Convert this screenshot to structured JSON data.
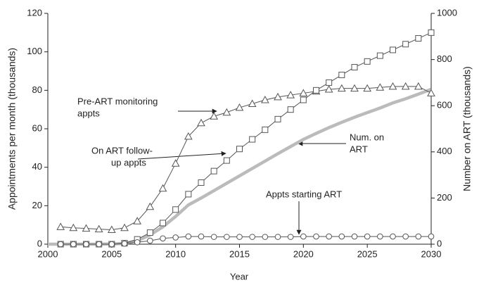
{
  "chart_data": {
    "type": "line",
    "x": [
      2000,
      2001,
      2002,
      2003,
      2004,
      2005,
      2006,
      2007,
      2008,
      2009,
      2010,
      2011,
      2012,
      2013,
      2014,
      2015,
      2016,
      2017,
      2018,
      2019,
      2020,
      2021,
      2022,
      2023,
      2024,
      2025,
      2026,
      2027,
      2028,
      2029,
      2030
    ],
    "series": [
      {
        "marker": "triangle",
        "color": "#555555",
        "values": [
          null,
          9,
          8.5,
          8.2,
          7.8,
          7.5,
          8.5,
          12,
          19.5,
          29,
          42,
          56,
          63,
          66.5,
          68.5,
          71,
          73,
          75,
          76.5,
          77.5,
          78.5,
          79.5,
          80.5,
          81,
          81,
          81,
          81.5,
          82,
          82,
          82,
          78.5
        ]
      },
      {
        "marker": "square",
        "color": "#555555",
        "values": [
          null,
          0,
          0,
          0,
          0,
          0,
          0.5,
          2.5,
          6,
          11,
          18,
          26,
          32,
          38,
          43.5,
          49.5,
          54.5,
          59.5,
          65,
          70,
          75,
          80,
          84,
          88,
          92,
          95,
          98,
          101,
          104,
          107,
          110
        ]
      },
      {
        "marker": "circle",
        "color": "#555555",
        "values": [
          null,
          0,
          0,
          0,
          0,
          0,
          0.3,
          1,
          1.8,
          3,
          3.5,
          4,
          4,
          3.8,
          3.8,
          3.8,
          3.8,
          3.8,
          3.8,
          3.8,
          4,
          4,
          4,
          4,
          4,
          4,
          4,
          4,
          4,
          4,
          4
        ]
      },
      {
        "marker": "none",
        "axis": "y2",
        "color": "#bbbbbb",
        "values": [
          0,
          0,
          0,
          0,
          0,
          1,
          3,
          15,
          40,
          75,
          120,
          170,
          200,
          232,
          264,
          296,
          328,
          360,
          392,
          423,
          454,
          480,
          505,
          528,
          550,
          570,
          590,
          612,
          630,
          650,
          671
        ]
      }
    ],
    "xlabel": "Year",
    "ylabel": "Appointments per month (thousands)",
    "y2label": "Number on ART (thousands)",
    "xlim": [
      2000,
      2030
    ],
    "xticks": [
      2000,
      2005,
      2010,
      2015,
      2020,
      2025,
      2030
    ],
    "ylim": [
      0,
      120
    ],
    "yticks": [
      0,
      20,
      40,
      60,
      80,
      100,
      120
    ],
    "y2lim": [
      0,
      1000
    ],
    "y2ticks": [
      0,
      200,
      400,
      600,
      800,
      1000
    ],
    "annotations": [
      {
        "lines": [
          "Pre-ART monitoring",
          "appts"
        ]
      },
      {
        "lines": [
          "On ART follow-",
          "up appts"
        ]
      },
      {
        "lines": [
          "Num. on",
          "ART"
        ]
      },
      {
        "lines": [
          "Appts starting ART"
        ]
      }
    ]
  }
}
